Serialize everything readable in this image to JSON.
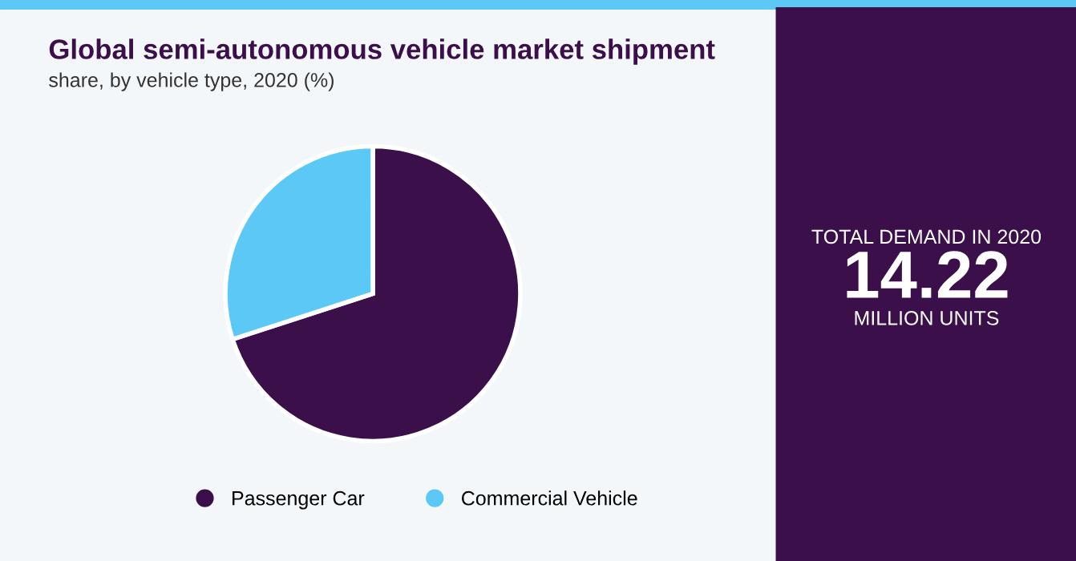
{
  "chart_data": {
    "type": "pie",
    "title": "Global semi-autonomous vehicle market shipment",
    "subtitle": "share, by vehicle type, 2020 (%)",
    "categories": [
      "Passenger Car",
      "Commercial Vehicle"
    ],
    "values": [
      70,
      30
    ],
    "colors": [
      "#3b0f4a",
      "#5bc8f5"
    ],
    "legend": "bottom",
    "annotations": [
      "TOTAL DEMAND IN 2020",
      "14.22",
      "MILLION UNITS"
    ]
  }
}
